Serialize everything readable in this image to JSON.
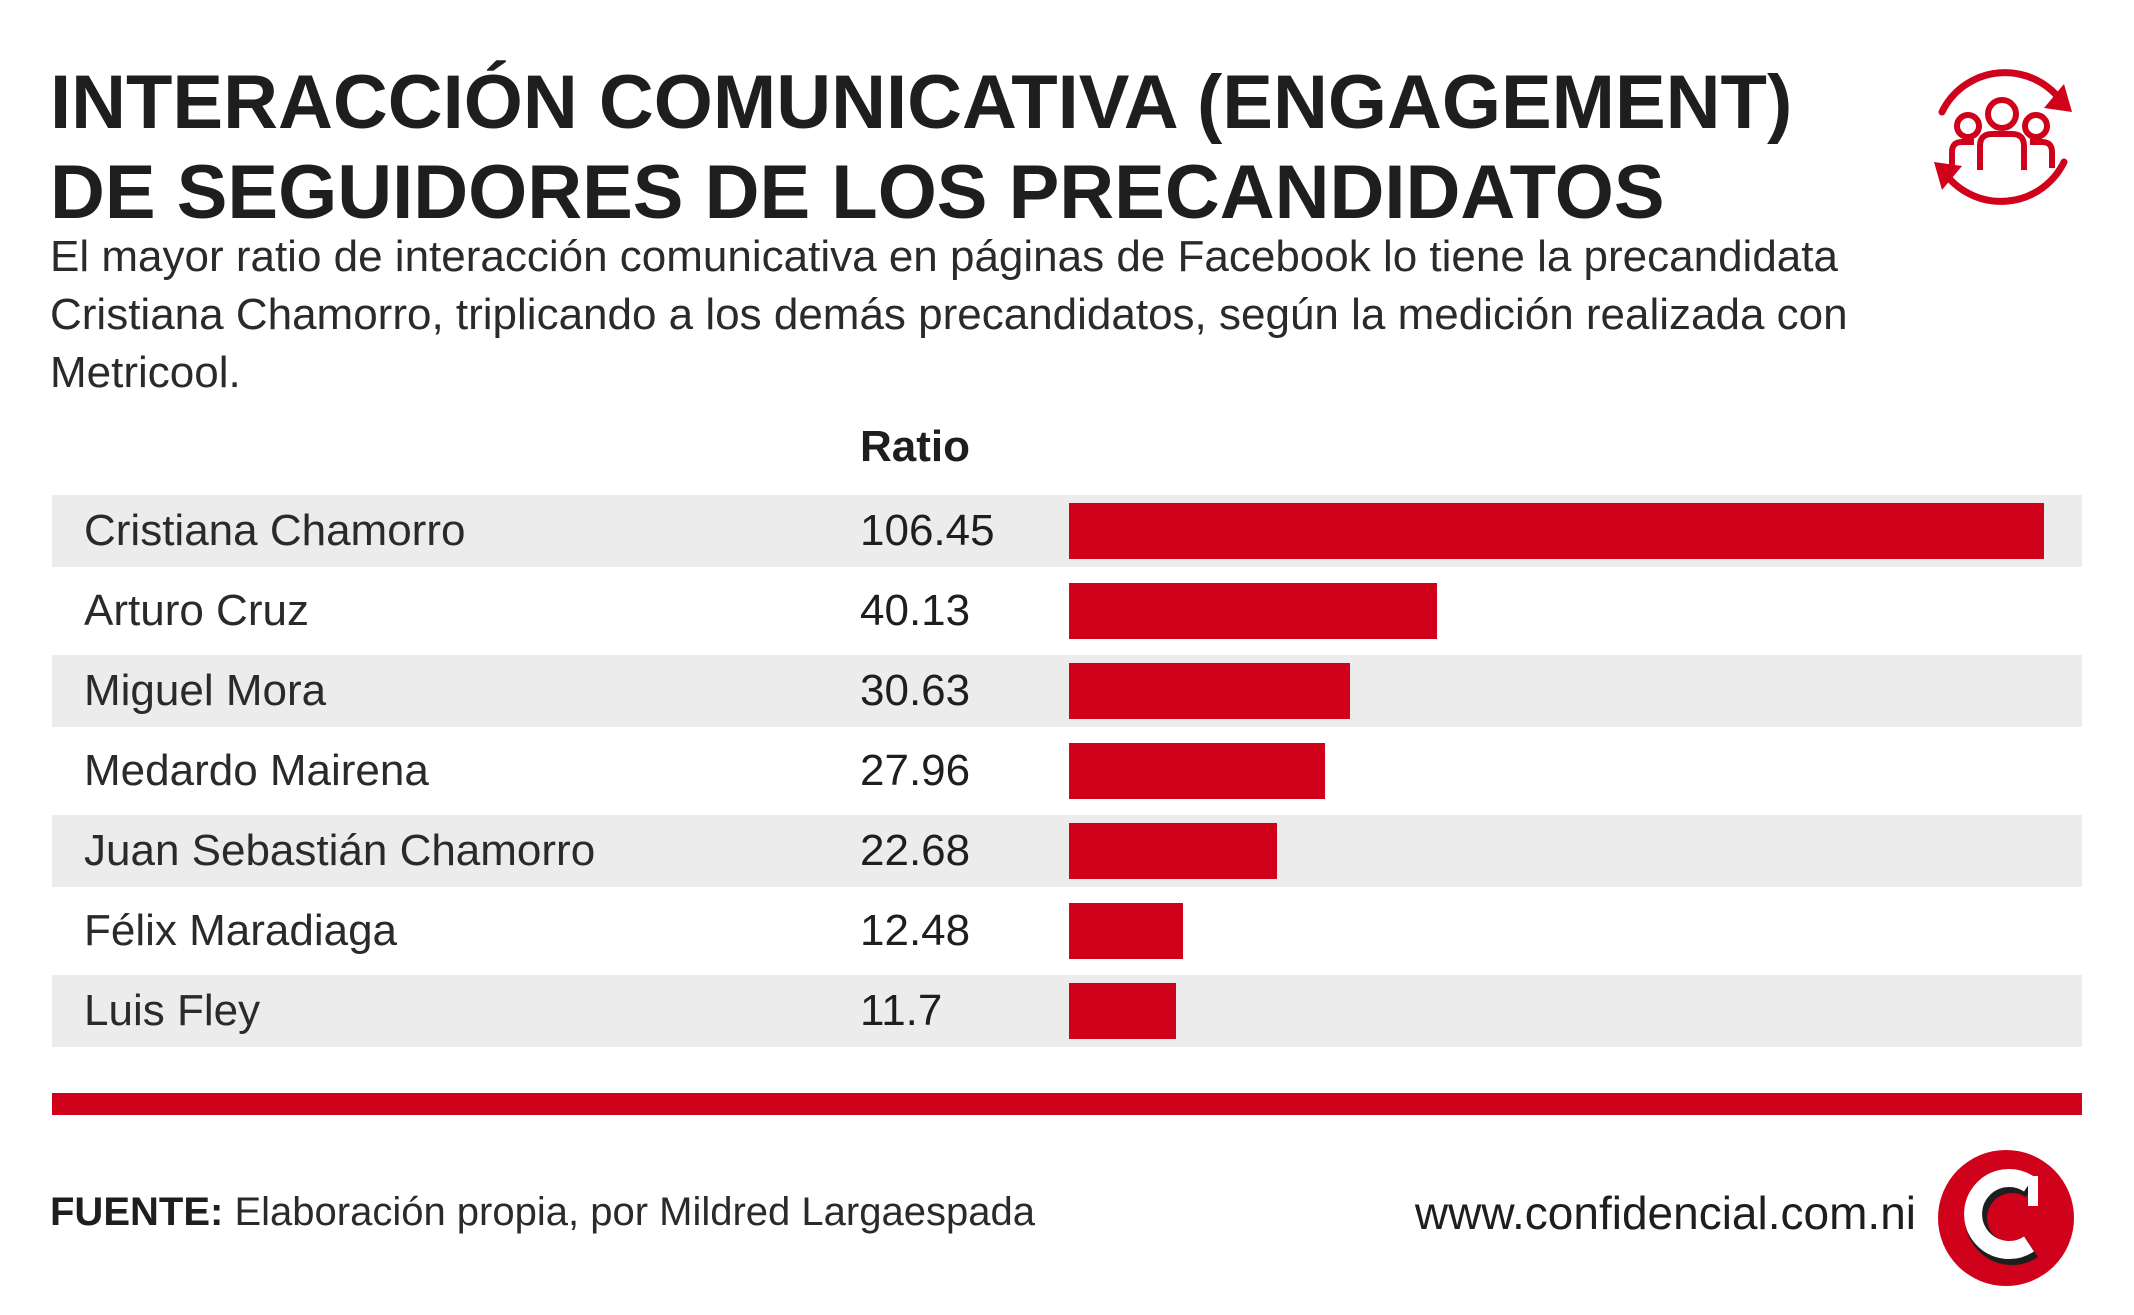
{
  "header": {
    "title_line1": "INTERACCIÓN COMUNICATIVA (ENGAGEMENT)",
    "title_line2": "DE SEGUIDORES DE LOS PRECANDIDATOS",
    "subtitle": "El mayor ratio de interacción comunicativa en páginas de Facebook lo tiene la precandidata Cristiana Chamorro, triplicando a los demás precandidatos, según la medición realizada con Metricool."
  },
  "chart_data": {
    "type": "bar",
    "orientation": "horizontal",
    "value_header": "Ratio",
    "categories": [
      "Cristiana Chamorro",
      "Arturo Cruz",
      "Miguel Mora",
      "Medardo Mairena",
      "Juan Sebastián Chamorro",
      "Félix Maradiaga",
      "Luis Fley"
    ],
    "value_labels": [
      "106.45",
      "40.13",
      "30.63",
      "27.96",
      "22.68",
      "12.48",
      "11.7"
    ],
    "values": [
      106.45,
      40.13,
      30.63,
      27.96,
      22.68,
      12.48,
      11.7
    ],
    "xlim": [
      0,
      106.45
    ],
    "bar_color": "#d0021b",
    "row_stripe_color": "#ececec"
  },
  "footer": {
    "source_label": "FUENTE:",
    "source_text": " Elaboración propia, por Mildred Largaespada",
    "website": "www.confidencial.com.ni"
  },
  "icons": {
    "header_icon": "engagement-cycle-icon",
    "brand_logo": "confidencial-logo"
  },
  "colors": {
    "accent": "#d0021b",
    "text": "#1e1e1e"
  }
}
